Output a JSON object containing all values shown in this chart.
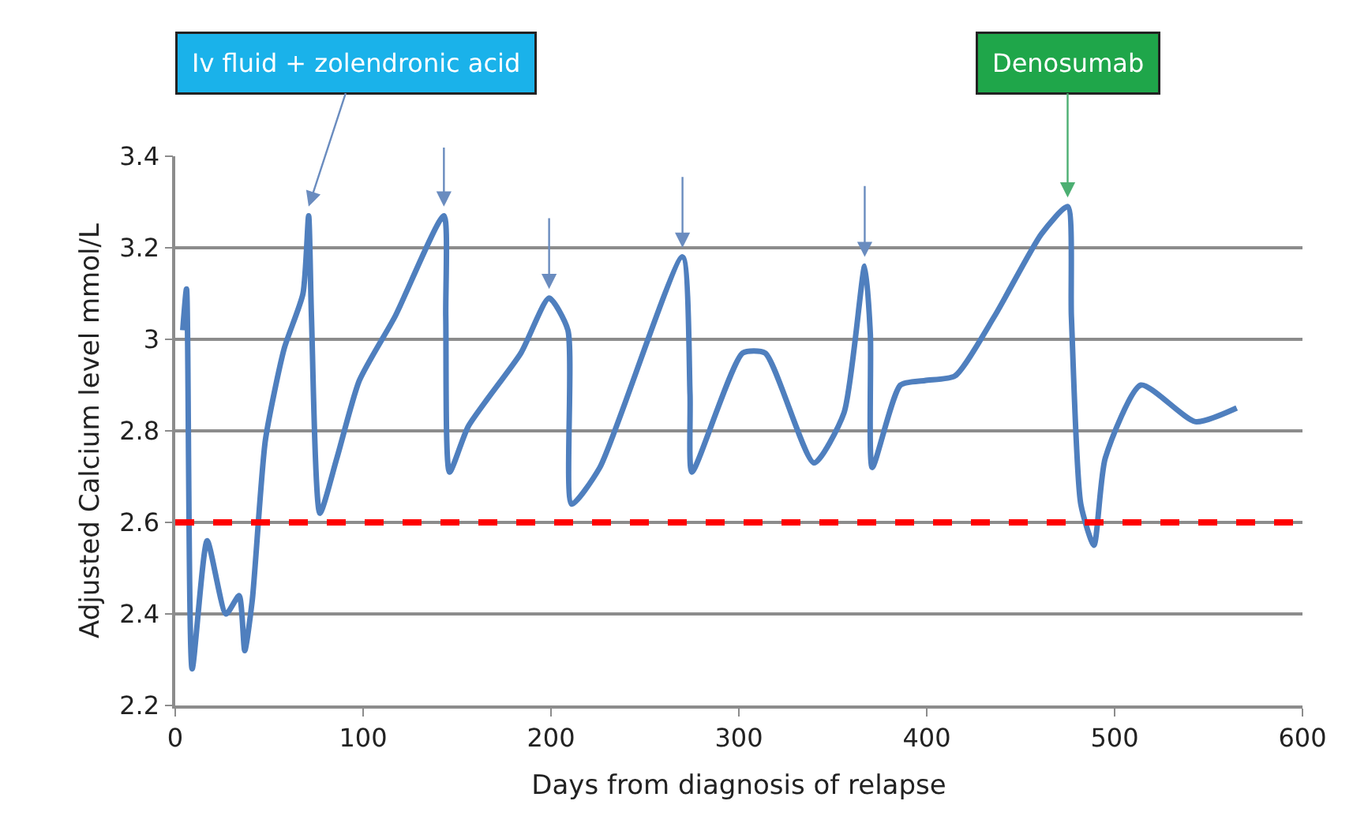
{
  "chart_data": {
    "type": "line",
    "xlabel": "Days from diagnosis of relapse",
    "ylabel": "Adjusted Calcium level mmol/L",
    "xlim": [
      0,
      600
    ],
    "xticks": [
      0,
      100,
      200,
      300,
      400,
      500,
      600
    ],
    "ylim": [
      2.2,
      3.4
    ],
    "yticks": [
      2.2,
      2.4,
      2.6,
      2.8,
      3,
      3.2,
      3.4
    ],
    "grid": "y",
    "marker": "none",
    "line_style": "solid",
    "series": [
      {
        "color": "#4f7fbe",
        "x": [
          4,
          6,
          9,
          17,
          27,
          34,
          37,
          41,
          48,
          58,
          68,
          71,
          72.5,
          77,
          86,
          98,
          117,
          143,
          144,
          146,
          156,
          184,
          199,
          209,
          211,
          226,
          270,
          274,
          275,
          302,
          314,
          340,
          356,
          367,
          370,
          371,
          386,
          399,
          415,
          436,
          461,
          475,
          477,
          482,
          489,
          495,
          514,
          543,
          565
        ],
        "values": [
          3.02,
          3.11,
          2.28,
          2.56,
          2.4,
          2.44,
          2.32,
          2.43,
          2.78,
          2.98,
          3.1,
          3.27,
          3.05,
          2.62,
          2.74,
          2.91,
          3.05,
          3.27,
          3.05,
          2.71,
          2.81,
          2.97,
          3.09,
          3.02,
          2.64,
          2.72,
          3.18,
          2.88,
          2.71,
          2.97,
          2.97,
          2.73,
          2.84,
          3.16,
          3.01,
          2.72,
          2.9,
          2.91,
          2.92,
          3.05,
          3.23,
          3.29,
          3.05,
          2.64,
          2.55,
          2.74,
          2.9,
          2.82,
          2.85
        ]
      }
    ],
    "ref_lines": [
      {
        "axis": "y",
        "value": 2.6,
        "color": "#ff0000",
        "line_style": "dashed"
      }
    ],
    "annotations": [
      {
        "text": "Iv fluid + zolendronic acid",
        "x": 71,
        "y": 3.27
      },
      {
        "text": "Denosumab",
        "x": 475,
        "y": 3.29
      }
    ]
  }
}
